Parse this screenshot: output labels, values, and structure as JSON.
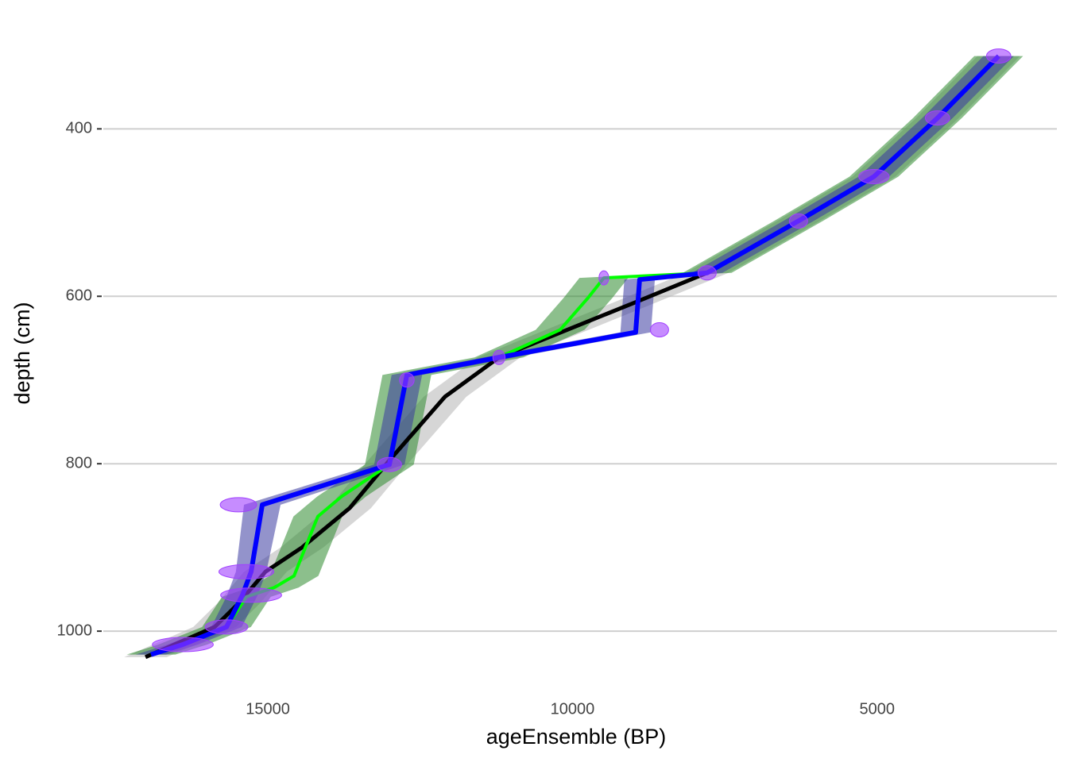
{
  "chart_data": {
    "type": "line",
    "x_label": "ageEnsemble (BP)",
    "y_label": "depth (cm)",
    "xlim": [
      17700,
      2050
    ],
    "ylim": [
      284,
      1071
    ],
    "xticks": [
      15000,
      10000,
      5000
    ],
    "yticks": [
      400,
      600,
      800,
      1000
    ],
    "grid": true,
    "series": [
      {
        "color": "#000000",
        "band_color": "#b5b5b5",
        "age": [
          3005,
          4009,
          5052,
          6291,
          7790,
          8963,
          11206,
          12093,
          13005,
          13657,
          14439,
          15039,
          15482,
          15873,
          17008
        ],
        "depth": [
          313,
          387,
          457,
          510,
          572,
          607,
          673,
          720,
          796,
          853,
          900,
          929,
          967,
          995,
          1031
        ],
        "lower": [
          2655,
          3659,
          4702,
          5941,
          7440,
          8613,
          10856,
          11743,
          12655,
          13307,
          14089,
          14689,
          15132,
          15523,
          16658
        ],
        "upper": [
          3355,
          4359,
          5402,
          6641,
          8140,
          9313,
          11556,
          12443,
          13355,
          14007,
          14789,
          15389,
          15832,
          16223,
          17358
        ]
      },
      {
        "color": "#00ff00",
        "band_color": "#2e8b2e",
        "age": [
          3005,
          4009,
          5052,
          6291,
          7790,
          9485,
          9746,
          10202,
          11206,
          12718,
          13005,
          13787,
          14179,
          14439,
          14570,
          14896,
          15352,
          15678,
          16395,
          16917
        ],
        "depth": [
          313,
          387,
          457,
          510,
          572,
          578,
          602,
          640,
          673,
          694,
          801,
          839,
          863,
          910,
          934,
          948,
          959,
          995,
          1016,
          1028
        ],
        "lower": [
          2605,
          3609,
          4652,
          5891,
          7390,
          9085,
          9346,
          9802,
          10806,
          12318,
          12605,
          13387,
          13779,
          14039,
          14170,
          14496,
          14952,
          15278,
          15995,
          16517
        ],
        "upper": [
          3405,
          4409,
          5452,
          6691,
          8190,
          9885,
          10146,
          10602,
          11606,
          13118,
          13405,
          14187,
          14579,
          14839,
          14970,
          15296,
          15752,
          16078,
          16795,
          17317
        ]
      },
      {
        "color": "#0000ff",
        "band_color": "#3a3aa0",
        "age": [
          3005,
          4009,
          5052,
          6291,
          7790,
          8898,
          8963,
          11206,
          12718,
          13005,
          15091,
          15274,
          15417,
          15678,
          16395,
          16917
        ],
        "depth": [
          313,
          387,
          457,
          510,
          572,
          580,
          643,
          673,
          694,
          801,
          849,
          929,
          957,
          995,
          1016,
          1028
        ],
        "lower": [
          2755,
          3759,
          4802,
          6041,
          7540,
          8648,
          8713,
          10956,
          12468,
          12755,
          14791,
          15024,
          15167,
          15428,
          16145,
          16667
        ],
        "upper": [
          3255,
          4259,
          5302,
          6541,
          8040,
          9148,
          9213,
          11456,
          12968,
          13255,
          15391,
          15524,
          15667,
          15928,
          16645,
          17167
        ]
      }
    ],
    "dates": {
      "color": "#a040ff",
      "age": [
        3005,
        4009,
        5052,
        6291,
        7790,
        9485,
        8572,
        11206,
        12718,
        13005,
        15482,
        15352,
        15274,
        15678,
        16395
      ],
      "depth": [
        313,
        387,
        457,
        510,
        572,
        578,
        640,
        673,
        700,
        801,
        849,
        929,
        957,
        995,
        1016
      ],
      "spread": [
        200,
        200,
        250,
        150,
        150,
        80,
        150,
        100,
        120,
        200,
        300,
        450,
        500,
        350,
        500
      ]
    }
  }
}
